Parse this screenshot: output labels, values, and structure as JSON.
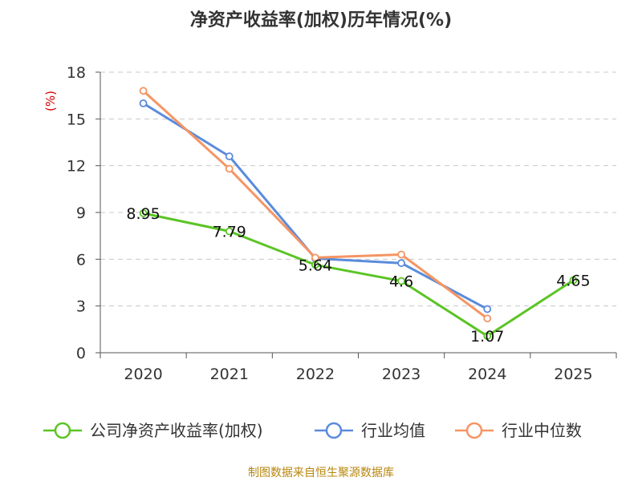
{
  "chart_data": {
    "type": "line",
    "title": "净资产收益率(加权)历年情况(%)",
    "ylabel": "(%)",
    "xlabel": "",
    "categories": [
      "2020",
      "2021",
      "2022",
      "2023",
      "2024",
      "2025"
    ],
    "ylim": [
      0,
      18
    ],
    "yticks": [
      0,
      3,
      6,
      9,
      12,
      15,
      18
    ],
    "grid": true,
    "legend_position": "bottom",
    "series": [
      {
        "name": "公司净资产收益率(加权)",
        "color": "#5bc425",
        "values": [
          8.95,
          7.79,
          5.64,
          4.6,
          1.07,
          4.65
        ],
        "labels": [
          "8.95",
          "7.79",
          "5.64",
          "4.6",
          "1.07",
          "4.65"
        ]
      },
      {
        "name": "行业均值",
        "color": "#5b8bdc",
        "values": [
          16.0,
          12.6,
          6.05,
          5.75,
          2.8,
          null
        ]
      },
      {
        "name": "行业中位数",
        "color": "#f59563",
        "values": [
          16.8,
          11.8,
          6.1,
          6.3,
          2.2,
          null
        ]
      }
    ]
  },
  "source": "制图数据来自恒生聚源数据库"
}
